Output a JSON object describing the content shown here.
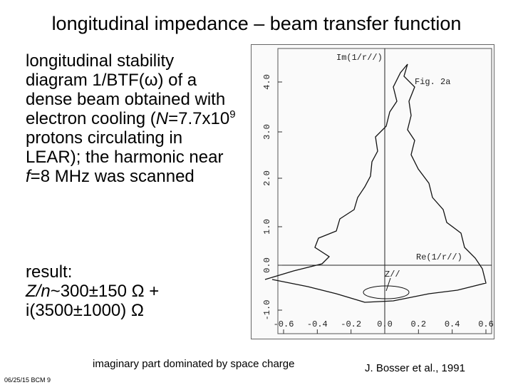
{
  "title": "longitudinal impedance – beam transfer function",
  "body": [
    "longitudinal stability diagram 1/BTF(ω) of a dense beam obtained with electron cooling (",
    "N",
    "=7.7x10",
    "9",
    " protons circulating in LEAR); the harmonic near ",
    "f",
    "=8 MHz was scanned"
  ],
  "result": [
    "result:",
    "Z/n",
    "~300±150 Ω + i(3500±1000) Ω"
  ],
  "figure": {
    "y_label": "Im(1/r//)",
    "x_label": "Re(1/r//)",
    "fig_label": "Fig. 2a",
    "marker": "Z//",
    "xticks": [
      "-0.6",
      "-0.4",
      "-0.2",
      "0.0",
      "0.2",
      "0.4",
      "0.6"
    ],
    "yticks": [
      "-1.0",
      "0.0",
      "1.0",
      "2.0",
      "3.0",
      "4.0"
    ]
  },
  "caption": "imaginary part dominated by space charge",
  "citation": "J. Bosser et al., 1991",
  "footer": "06/25/15 BCM 9"
}
